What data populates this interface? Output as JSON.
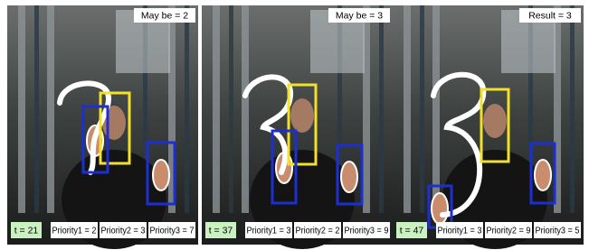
{
  "panels": [
    {
      "label": "May be = 2",
      "time": "t = 21",
      "priorities": [
        "Priority1 = 2",
        "Priority2 = 3",
        "Priority3 = 7"
      ]
    },
    {
      "label": "May be = 3",
      "time": "t = 37",
      "priorities": [
        "Priority1 = 3",
        "Priority2 = 2",
        "Priority3 = 9"
      ]
    },
    {
      "label": "Result = 3",
      "time": "t = 47",
      "priorities": [
        "Priority1 = 3",
        "Priority2 = 9",
        "Priority3 = 5"
      ]
    }
  ]
}
